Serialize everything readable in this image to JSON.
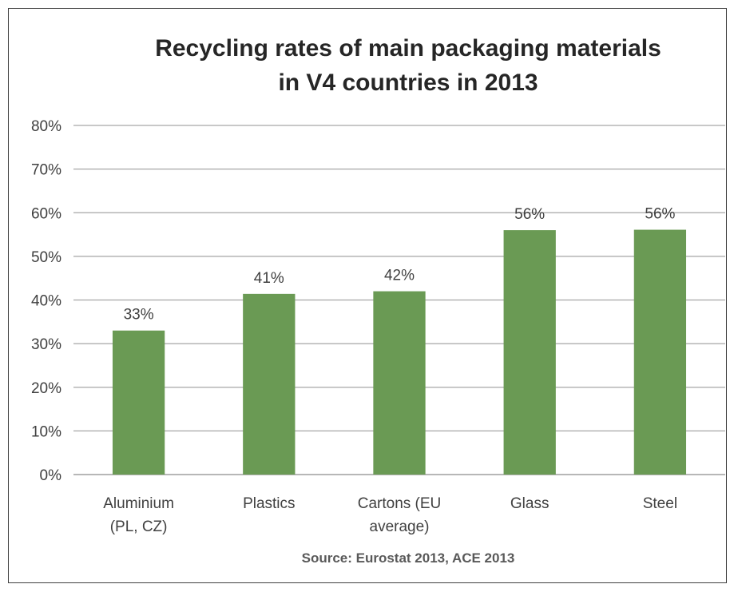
{
  "chart_data": {
    "type": "bar",
    "title_lines": [
      "Recycling rates of main packaging materials",
      "in V4 countries in 2013"
    ],
    "categories": [
      [
        "Aluminium",
        "(PL, CZ)"
      ],
      [
        "Plastics"
      ],
      [
        "Cartons (EU",
        "average)"
      ],
      [
        "Glass"
      ],
      [
        "Steel"
      ]
    ],
    "values": [
      33,
      41.4,
      42,
      56,
      56.1
    ],
    "data_labels": [
      "33%",
      "41%",
      "42%",
      "56%",
      "56%"
    ],
    "ylim": [
      0,
      80
    ],
    "yticks": [
      0,
      10,
      20,
      30,
      40,
      50,
      60,
      70,
      80
    ],
    "ytick_labels": [
      "0%",
      "10%",
      "20%",
      "30%",
      "40%",
      "50%",
      "60%",
      "70%",
      "80%"
    ],
    "grid": true,
    "bar_color": "#6a9a54",
    "source_note": "Source: Eurostat 2013, ACE 2013"
  }
}
